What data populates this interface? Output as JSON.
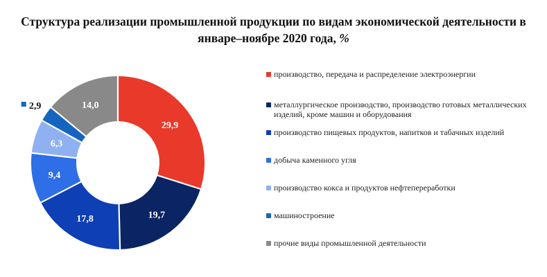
{
  "chart_data": {
    "type": "pie",
    "title": "Структура реализации промышленной продукции по видам экономической деятельности в январе–ноябре 2020 года,",
    "title_unit": "%",
    "legend_position": "right",
    "slices": [
      {
        "label": "производство, передача и распределение электроэнергии",
        "value": 29.9,
        "display": "29,9",
        "color": "#e8392a",
        "text_color": "#ffffff"
      },
      {
        "label": "металлургическое производство, производство готовых металлических изделий, кроме машин и оборудования",
        "value": 19.7,
        "display": "19,7",
        "color": "#0b2463",
        "text_color": "#ffffff"
      },
      {
        "label": "производство пищевых продуктов, напитков и табачных изделий",
        "value": 17.8,
        "display": "17,8",
        "color": "#0f3fb5",
        "text_color": "#ffffff"
      },
      {
        "label": "добыча каменного угля",
        "value": 9.4,
        "display": "9,4",
        "color": "#2e6ee6",
        "text_color": "#ffffff"
      },
      {
        "label": "производство кокса и продуктов нефтепереработки",
        "value": 6.3,
        "display": "6,3",
        "color": "#8fb1f2",
        "text_color": "#ffffff"
      },
      {
        "label": "машиностроение",
        "value": 2.9,
        "display": "2,9",
        "color": "#1565c0",
        "text_color": "#111111"
      },
      {
        "label": "прочие виды промышленной деятельности",
        "value": 14.0,
        "display": "14,0",
        "color": "#898989",
        "text_color": "#ffffff"
      }
    ]
  }
}
